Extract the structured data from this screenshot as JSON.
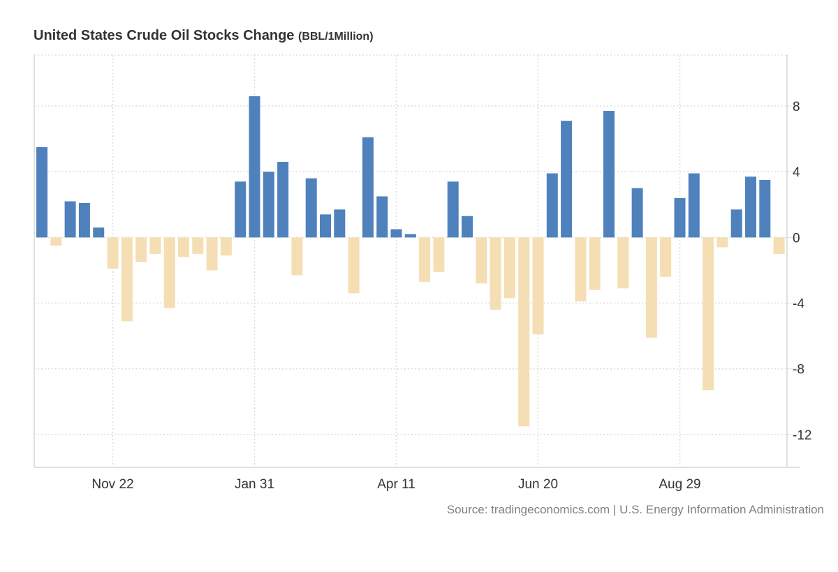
{
  "header": {
    "title": "United States Crude Oil Stocks Change",
    "unit": "(BBL/1Million)"
  },
  "footer": {
    "source": "Source: tradingeconomics.com | U.S. Energy Information Administration"
  },
  "colors": {
    "positive": "#4f81bd",
    "negative": "#f5deb3",
    "grid": "#dddddd",
    "axis": "#e0e0e0",
    "text": "#333333"
  },
  "chart_data": {
    "type": "bar",
    "title": "United States Crude Oil Stocks Change (BBL/1Million)",
    "xlabel": "",
    "ylabel": "",
    "ylim": [
      -14,
      11.1
    ],
    "y_axis_position": "right",
    "yticks": [
      8,
      4,
      0,
      -4,
      -8,
      -12
    ],
    "ytick_labels": [
      "8",
      "4",
      "0",
      "-4",
      "-8",
      "-12"
    ],
    "xticks": [
      {
        "index": 5,
        "label": "Nov 22"
      },
      {
        "index": 15,
        "label": "Jan 31"
      },
      {
        "index": 25,
        "label": "Apr 11"
      },
      {
        "index": 35,
        "label": "Jun 20"
      },
      {
        "index": 45,
        "label": "Aug 29"
      }
    ],
    "grid": true,
    "legend": "none",
    "series": [
      {
        "name": "Crude Oil Stocks Change",
        "values": [
          5.5,
          -0.5,
          2.2,
          2.1,
          0.6,
          -1.9,
          -5.1,
          -1.5,
          -1.0,
          -4.3,
          -1.2,
          -1.0,
          -2.0,
          -1.1,
          3.4,
          8.6,
          4.0,
          4.6,
          -2.3,
          3.6,
          1.4,
          1.7,
          -3.4,
          6.1,
          2.5,
          0.5,
          0.2,
          -2.7,
          -2.1,
          3.4,
          1.3,
          -2.8,
          -4.4,
          -3.7,
          -11.5,
          -5.9,
          3.9,
          7.1,
          -3.9,
          -3.2,
          7.7,
          -3.1,
          3.0,
          -6.1,
          -2.4,
          2.4,
          3.9,
          -9.3,
          -0.6,
          1.7,
          3.7,
          3.5,
          -1.0
        ]
      }
    ]
  }
}
